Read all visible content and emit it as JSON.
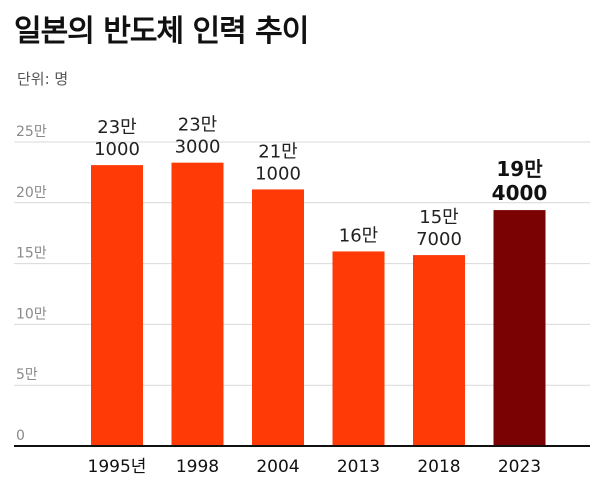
{
  "title": "일본의 반도체 인력 추이",
  "unit_label": "단위: 명",
  "colors": {
    "bar": "#ff3a06",
    "bar_highlight": "#7a0202",
    "grid": "#d9d9d9",
    "axis": "#111111"
  },
  "chart_data": {
    "type": "bar",
    "categories": [
      "1995년",
      "1998",
      "2004",
      "2013",
      "2018",
      "2023"
    ],
    "values": [
      231000,
      233000,
      211000,
      160000,
      157000,
      194000
    ],
    "value_labels": [
      [
        "23만",
        "1000"
      ],
      [
        "23만",
        "3000"
      ],
      [
        "21만",
        "1000"
      ],
      [
        "16만"
      ],
      [
        "15만",
        "7000"
      ],
      [
        "19만",
        "4000"
      ]
    ],
    "highlight_index": 5,
    "yticks": [
      0,
      50000,
      100000,
      150000,
      200000,
      250000
    ],
    "ytick_labels": [
      "0",
      "5만",
      "10만",
      "15만",
      "20만",
      "25만"
    ],
    "ylim": [
      0,
      250000
    ],
    "grid": true
  }
}
